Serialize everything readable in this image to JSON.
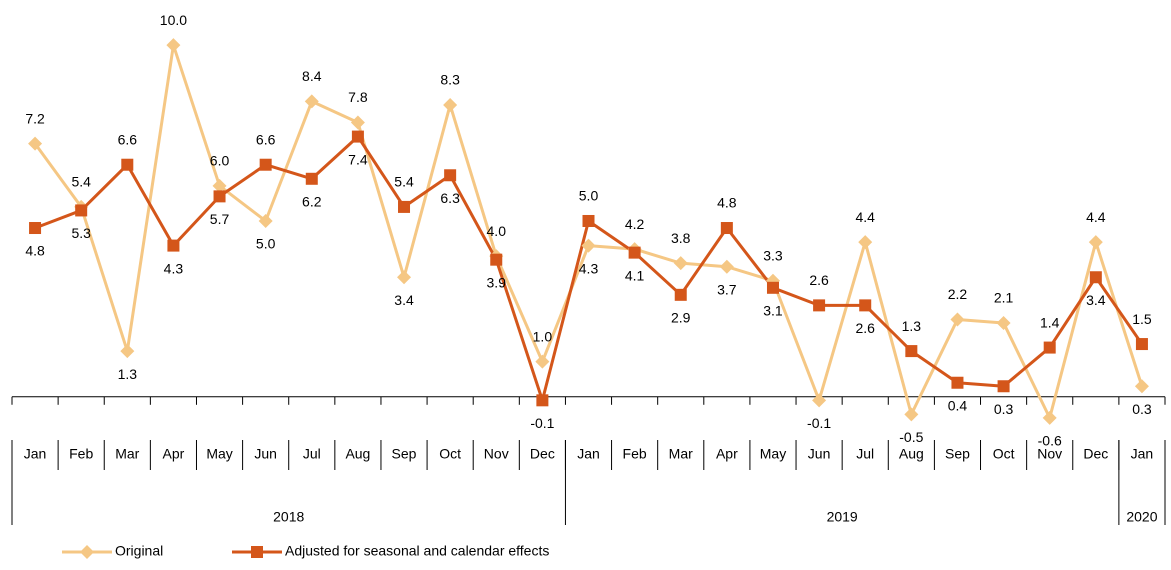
{
  "chart_data": {
    "type": "line",
    "category_groups": [
      {
        "name": "2018",
        "categories": [
          "Jan",
          "Feb",
          "Mar",
          "Apr",
          "May",
          "Jun",
          "Jul",
          "Aug",
          "Sep",
          "Oct",
          "Nov",
          "Dec"
        ]
      },
      {
        "name": "2019",
        "categories": [
          "Jan",
          "Feb",
          "Mar",
          "Apr",
          "May",
          "Jun",
          "Jul",
          "Aug",
          "Sep",
          "Oct",
          "Nov",
          "Dec"
        ]
      },
      {
        "name": "2020",
        "categories": [
          "Jan"
        ]
      }
    ],
    "series": [
      {
        "name": "Original",
        "color": "#f5c784",
        "marker": "diamond",
        "values": [
          7.2,
          5.4,
          1.3,
          10.0,
          6.0,
          5.0,
          8.4,
          7.8,
          3.4,
          8.3,
          4.0,
          1.0,
          4.3,
          4.2,
          3.8,
          3.7,
          3.3,
          -0.1,
          4.4,
          -0.5,
          2.2,
          2.1,
          -0.6,
          4.4,
          0.3
        ],
        "value_labels": [
          "7.2",
          "5.4",
          "1.3",
          "10.0",
          "6.0",
          "5.0",
          "8.4",
          "7.8",
          "3.4",
          "8.3",
          "4.0",
          "1.0",
          "4.3",
          "4.2",
          "3.8",
          "3.7",
          "3.3",
          "-0.1",
          "4.4",
          "-0.5",
          "2.2",
          "2.1",
          "-0.6",
          "4.4",
          "0.3"
        ]
      },
      {
        "name": "Adjusted for seasonal and calendar effects",
        "color": "#d4561a",
        "marker": "square",
        "values": [
          4.8,
          5.3,
          6.6,
          4.3,
          5.7,
          6.6,
          6.2,
          7.4,
          5.4,
          6.3,
          3.9,
          -0.1,
          5.0,
          4.1,
          2.9,
          4.8,
          3.1,
          2.6,
          2.6,
          1.3,
          0.4,
          0.3,
          1.4,
          3.4,
          1.5
        ],
        "value_labels": [
          "4.8",
          "5.3",
          "6.6",
          "4.3",
          "5.7",
          "6.6",
          "6.2",
          "7.4",
          "5.4",
          "6.3",
          "3.9",
          "-0.1",
          "5.0",
          "4.1",
          "2.9",
          "4.8",
          "3.1",
          "2.6",
          "2.6",
          "1.3",
          "0.4",
          "0.3",
          "1.4",
          "3.4",
          "1.5"
        ]
      }
    ],
    "ylim": [
      -1.2,
      11
    ]
  }
}
